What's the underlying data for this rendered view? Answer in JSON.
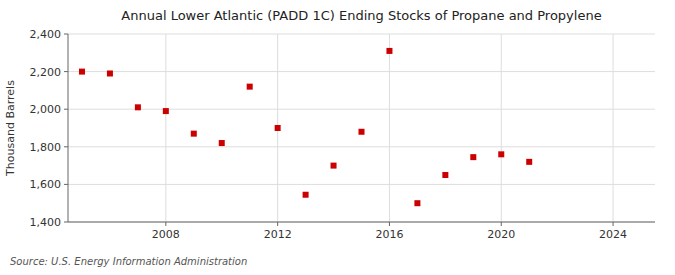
{
  "chart_data": {
    "type": "scatter",
    "title": "Annual Lower Atlantic (PADD 1C) Ending Stocks of Propane and Propylene",
    "y_label": "Thousand Barrels",
    "annotations": [
      "Source: U.S. Energy Information Administration"
    ],
    "x": [
      2005,
      2006,
      2007,
      2008,
      2009,
      2010,
      2011,
      2012,
      2013,
      2014,
      2015,
      2016,
      2017,
      2018,
      2019,
      2020,
      2021
    ],
    "values": [
      2200,
      2190,
      2010,
      1990,
      1870,
      1820,
      2120,
      1900,
      1545,
      1700,
      1880,
      2310,
      1500,
      1650,
      1745,
      1760,
      1720
    ],
    "color": "#cc0000",
    "marker": "square",
    "grid": true,
    "xlim": [
      2004.5,
      2025.5
    ],
    "xticks": [
      2008,
      2012,
      2016,
      2020,
      2024
    ],
    "ylim": [
      1400,
      2400
    ],
    "yticks": [
      {
        "value": 1400,
        "label": "1,400"
      },
      {
        "value": 1600,
        "label": "1,600"
      },
      {
        "value": 1800,
        "label": "1,800"
      },
      {
        "value": 2000,
        "label": "2,000"
      },
      {
        "value": 2200,
        "label": "2,200"
      },
      {
        "value": 2400,
        "label": "2,400"
      }
    ]
  }
}
